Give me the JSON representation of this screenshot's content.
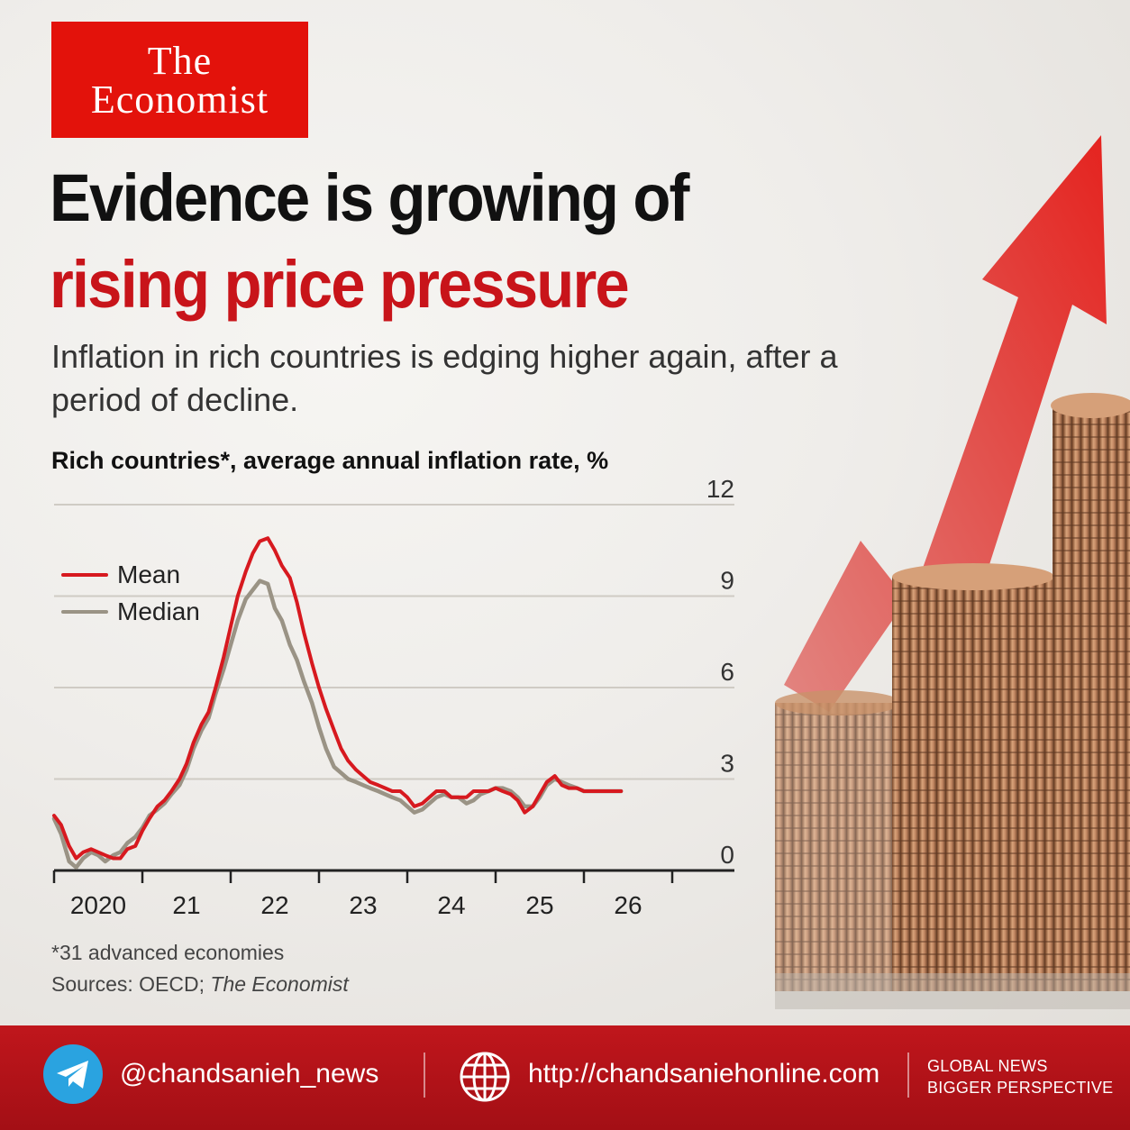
{
  "brand": {
    "line1": "The",
    "line2": "Economist"
  },
  "headline": {
    "line1": "Evidence is growing of",
    "line2": "rising price pressure"
  },
  "subtitle": "Inflation in rich countries is edging higher again, after a period of decline.",
  "chart_title": "Rich countries*, average annual inflation rate, %",
  "footnote": {
    "note": "*31 advanced economies",
    "sources_prefix": "Sources: OECD; ",
    "sources_italic": "The Economist"
  },
  "footer": {
    "handle": "@chandsanieh_news",
    "url": "http://chandsaniehonline.com",
    "tagline_line1": "GLOBAL NEWS",
    "tagline_line2": "BIGGER PERSPECTIVE",
    "telegram_icon": "telegram-icon",
    "globe_icon": "globe-icon"
  },
  "colors": {
    "accent": "#e3120b",
    "mean": "#d7191f",
    "median": "#9a9385",
    "footer": "#b3121a"
  },
  "chart_data": {
    "type": "line",
    "title": "Rich countries*, average annual inflation rate, %",
    "x_tick_labels": [
      "2020",
      "21",
      "22",
      "23",
      "24",
      "25",
      "26"
    ],
    "x_ticks": [
      2020,
      2021,
      2022,
      2023,
      2024,
      2025,
      2026,
      2027
    ],
    "xlim": [
      2020,
      2027
    ],
    "y_ticks": [
      0,
      3,
      6,
      9,
      12
    ],
    "y_tick_labels": [
      "0",
      "3",
      "6",
      "9",
      "12"
    ],
    "ylim": [
      0,
      12
    ],
    "y_axis_position": "right",
    "grid": "horizontal",
    "legend_position": "top-left",
    "series": [
      {
        "name": "Mean",
        "color": "#d7191f",
        "x": [
          2020.0,
          2020.08,
          2020.17,
          2020.25,
          2020.33,
          2020.42,
          2020.5,
          2020.58,
          2020.67,
          2020.75,
          2020.83,
          2020.92,
          2021.0,
          2021.08,
          2021.17,
          2021.25,
          2021.33,
          2021.42,
          2021.5,
          2021.58,
          2021.67,
          2021.75,
          2021.83,
          2021.92,
          2022.0,
          2022.08,
          2022.17,
          2022.25,
          2022.33,
          2022.42,
          2022.5,
          2022.58,
          2022.67,
          2022.75,
          2022.83,
          2022.92,
          2023.0,
          2023.08,
          2023.17,
          2023.25,
          2023.33,
          2023.42,
          2023.5,
          2023.58,
          2023.67,
          2023.75,
          2023.83,
          2023.92,
          2024.0,
          2024.08,
          2024.17,
          2024.25,
          2024.33,
          2024.42,
          2024.5,
          2024.58,
          2024.67,
          2024.75,
          2024.83,
          2024.92,
          2025.0,
          2025.08,
          2025.17,
          2025.25,
          2025.33,
          2025.42,
          2025.5,
          2025.58,
          2025.67,
          2025.75,
          2025.83,
          2025.92,
          2026.0,
          2026.08,
          2026.17,
          2026.25,
          2026.33,
          2026.42
        ],
        "values": [
          1.8,
          1.5,
          0.8,
          0.4,
          0.6,
          0.7,
          0.6,
          0.5,
          0.4,
          0.4,
          0.7,
          0.8,
          1.3,
          1.7,
          2.1,
          2.3,
          2.6,
          3.0,
          3.5,
          4.2,
          4.8,
          5.2,
          6.0,
          7.0,
          8.0,
          9.0,
          9.8,
          10.4,
          10.8,
          10.9,
          10.5,
          10.0,
          9.6,
          8.8,
          7.8,
          6.8,
          6.0,
          5.3,
          4.6,
          4.0,
          3.6,
          3.3,
          3.1,
          2.9,
          2.8,
          2.7,
          2.6,
          2.6,
          2.4,
          2.1,
          2.2,
          2.4,
          2.6,
          2.6,
          2.4,
          2.4,
          2.4,
          2.6,
          2.6,
          2.6,
          2.7,
          2.6,
          2.5,
          2.3,
          1.9,
          2.1,
          2.5,
          2.9,
          3.1,
          2.8,
          2.7,
          2.7,
          2.6,
          2.6,
          2.6,
          2.6,
          2.6,
          2.6
        ]
      },
      {
        "name": "Median",
        "color": "#9a9385",
        "x": [
          2020.0,
          2020.08,
          2020.17,
          2020.25,
          2020.33,
          2020.42,
          2020.5,
          2020.58,
          2020.67,
          2020.75,
          2020.83,
          2020.92,
          2021.0,
          2021.08,
          2021.17,
          2021.25,
          2021.33,
          2021.42,
          2021.5,
          2021.58,
          2021.67,
          2021.75,
          2021.83,
          2021.92,
          2022.0,
          2022.08,
          2022.17,
          2022.25,
          2022.33,
          2022.42,
          2022.5,
          2022.58,
          2022.67,
          2022.75,
          2022.83,
          2022.92,
          2023.0,
          2023.08,
          2023.17,
          2023.25,
          2023.33,
          2023.42,
          2023.5,
          2023.58,
          2023.67,
          2023.75,
          2023.83,
          2023.92,
          2024.0,
          2024.08,
          2024.17,
          2024.25,
          2024.33,
          2024.42,
          2024.5,
          2024.58,
          2024.67,
          2024.75,
          2024.83,
          2024.92,
          2025.0,
          2025.08,
          2025.17,
          2025.25,
          2025.33,
          2025.42,
          2025.5,
          2025.58,
          2025.67,
          2025.75,
          2025.83,
          2025.92,
          2026.0,
          2026.08,
          2026.17,
          2026.25,
          2026.33,
          2026.42
        ],
        "values": [
          1.7,
          1.2,
          0.3,
          0.1,
          0.4,
          0.6,
          0.5,
          0.3,
          0.5,
          0.6,
          0.9,
          1.1,
          1.4,
          1.8,
          2.0,
          2.2,
          2.5,
          2.8,
          3.3,
          4.0,
          4.6,
          5.0,
          5.8,
          6.6,
          7.4,
          8.2,
          8.9,
          9.2,
          9.5,
          9.4,
          8.6,
          8.2,
          7.4,
          6.9,
          6.2,
          5.5,
          4.7,
          4.0,
          3.4,
          3.2,
          3.0,
          2.9,
          2.8,
          2.7,
          2.6,
          2.5,
          2.4,
          2.3,
          2.1,
          1.9,
          2.0,
          2.2,
          2.4,
          2.5,
          2.4,
          2.4,
          2.2,
          2.3,
          2.5,
          2.6,
          2.7,
          2.7,
          2.6,
          2.4,
          2.1,
          2.1,
          2.4,
          2.8,
          3.0,
          2.9,
          2.8,
          2.7,
          2.6,
          2.6,
          2.6,
          2.6,
          2.6,
          2.6
        ]
      }
    ]
  }
}
